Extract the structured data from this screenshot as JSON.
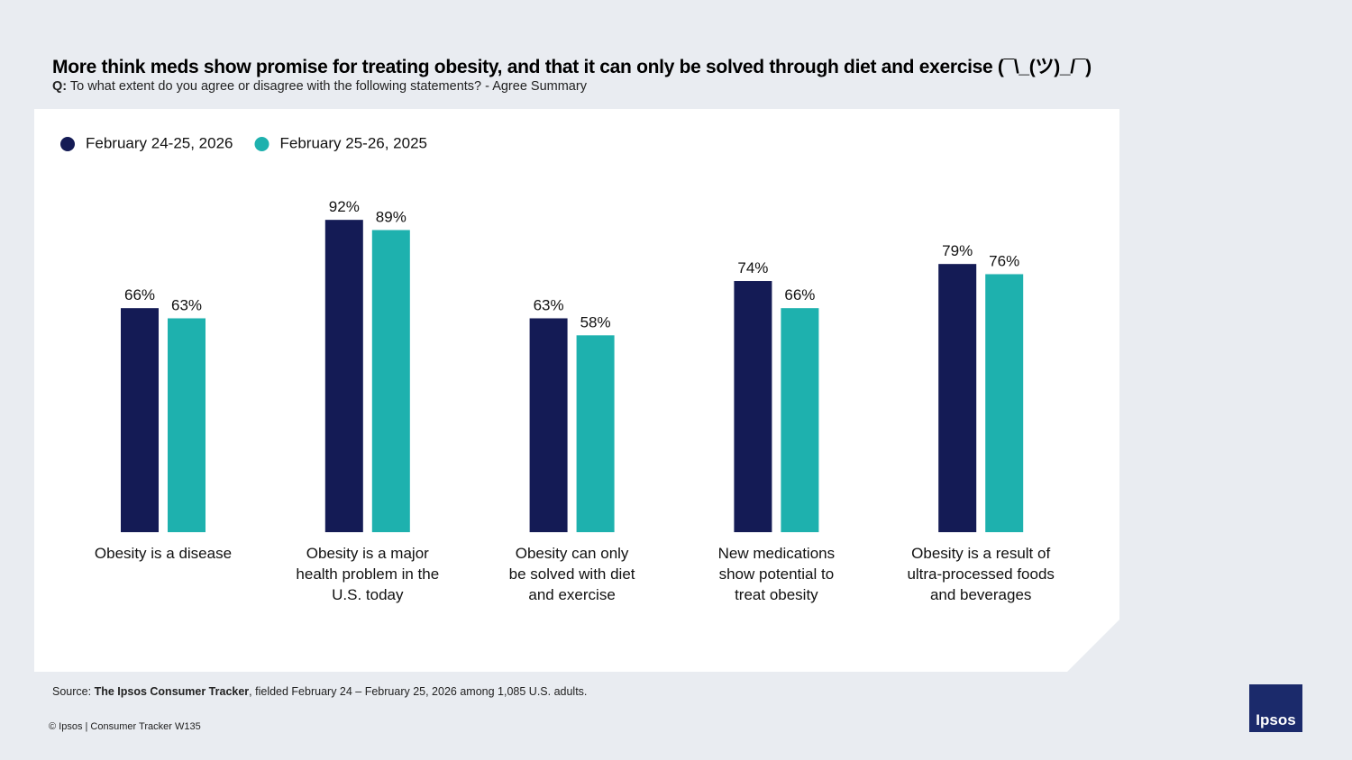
{
  "header": {
    "title": "More think meds show promise for treating obesity, and that it can only be solved through diet and exercise (¯\\_(ツ)_/¯)",
    "question_label": "Q:",
    "question": "To what extent do you agree or disagree with the following statements? - Agree Summary"
  },
  "chart_data": {
    "type": "bar",
    "categories": [
      "Obesity is a disease",
      "Obesity is a major\nhealth problem in the\nU.S. today",
      "Obesity can only\nbe solved with diet\nand exercise",
      "New medications\nshow potential to\ntreat obesity",
      "Obesity is a result of\nultra-processed foods\nand beverages"
    ],
    "series": [
      {
        "name": "February 24-25, 2026",
        "color": "#141b55",
        "values": [
          66,
          92,
          63,
          74,
          79
        ],
        "value_labels": [
          "66%",
          "92%",
          "63%",
          "74%",
          "79%"
        ]
      },
      {
        "name": "February 25-26, 2025",
        "color": "#1eb1ae",
        "values": [
          63,
          89,
          58,
          66,
          76
        ],
        "value_labels": [
          "63%",
          "89%",
          "58%",
          "66%",
          "76%"
        ]
      }
    ],
    "ylim": [
      0,
      100
    ],
    "legend": "top-left"
  },
  "footer": {
    "source_label": "Source:",
    "source_name": "The Ipsos Consumer Tracker",
    "source_text": ", fielded February 24 – February 25, 2026 among 1,085 U.S. adults.",
    "copyright": "© Ipsos | Consumer Tracker W135",
    "logo": "Ipsos"
  }
}
